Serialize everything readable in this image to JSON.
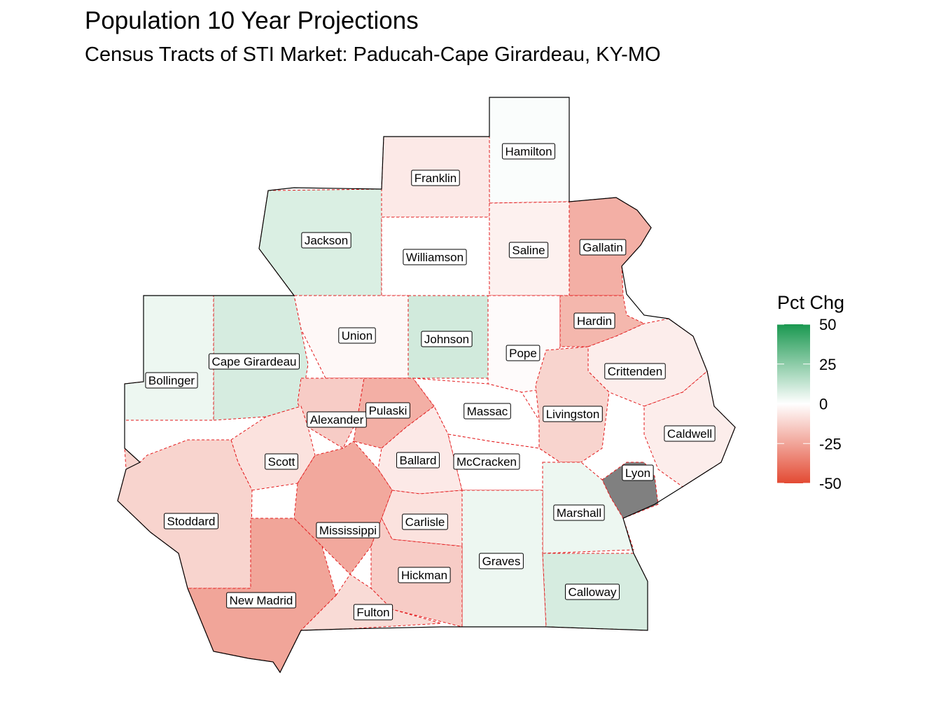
{
  "title": "Population 10 Year Projections",
  "subtitle": "Census Tracts of STI Market: Paducah-Cape Girardeau, KY-MO",
  "legend": {
    "title": "Pct Chg",
    "ticks": [
      "50",
      "25",
      "0",
      "-25",
      "-50"
    ],
    "tick_values": [
      50,
      25,
      0,
      -25,
      -50
    ],
    "range": [
      -50,
      50
    ],
    "colors": {
      "high": "#1a9850",
      "mid": "#ffffff",
      "low": "#e34a33"
    }
  },
  "colors": {
    "na": "#808080",
    "county_border": "#e31a1c",
    "outline": "#000000"
  },
  "counties": [
    {
      "name": "Hamilton",
      "pct": 1
    },
    {
      "name": "Franklin",
      "pct": -6
    },
    {
      "name": "Jackson",
      "pct": 8
    },
    {
      "name": "Williamson",
      "pct": 0
    },
    {
      "name": "Saline",
      "pct": -4
    },
    {
      "name": "Gallatin",
      "pct": -22
    },
    {
      "name": "Union",
      "pct": -2
    },
    {
      "name": "Johnson",
      "pct": 10
    },
    {
      "name": "Pope",
      "pct": -1
    },
    {
      "name": "Hardin",
      "pct": -20
    },
    {
      "name": "Cape Girardeau",
      "pct": 9
    },
    {
      "name": "Bollinger",
      "pct": 4
    },
    {
      "name": "Crittenden",
      "pct": -5
    },
    {
      "name": "Alexander",
      "pct": -14
    },
    {
      "name": "Pulaski",
      "pct": -22
    },
    {
      "name": "Massac",
      "pct": 0
    },
    {
      "name": "Livingston",
      "pct": -12
    },
    {
      "name": "Caldwell",
      "pct": -5
    },
    {
      "name": "Scott",
      "pct": -8
    },
    {
      "name": "Ballard",
      "pct": -6
    },
    {
      "name": "McCracken",
      "pct": 0
    },
    {
      "name": "Lyon",
      "pct": null
    },
    {
      "name": "Marshall",
      "pct": 4
    },
    {
      "name": "Stoddard",
      "pct": -12
    },
    {
      "name": "Carlisle",
      "pct": -8
    },
    {
      "name": "Mississippi",
      "pct": -24
    },
    {
      "name": "Graves",
      "pct": 4
    },
    {
      "name": "Hickman",
      "pct": -14
    },
    {
      "name": "Calloway",
      "pct": 9
    },
    {
      "name": "New Madrid",
      "pct": -25
    },
    {
      "name": "Fulton",
      "pct": -10
    }
  ]
}
